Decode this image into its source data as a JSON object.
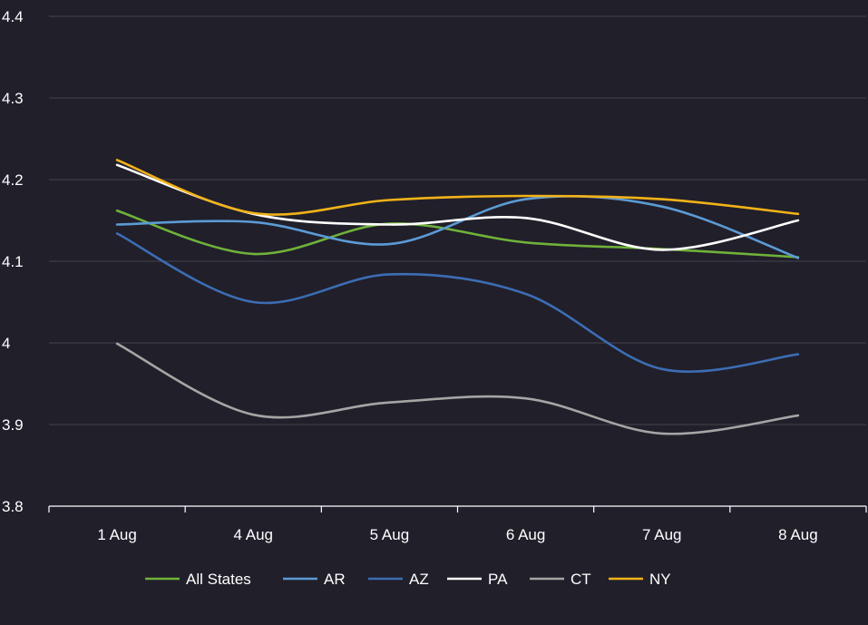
{
  "chart_data": {
    "type": "line",
    "categories": [
      "1 Aug",
      "4 Aug",
      "5 Aug",
      "6 Aug",
      "7 Aug",
      "8 Aug"
    ],
    "ylim": [
      3.8,
      4.4
    ],
    "yticks": [
      3.8,
      3.9,
      4,
      4.1,
      4.2,
      4.3,
      4.4
    ],
    "ytick_labels": [
      "3.8",
      "3.9",
      "4",
      "4.1",
      "4.2",
      "4.3",
      "4.4"
    ],
    "grid": true,
    "legend_position": "bottom",
    "series": [
      {
        "name": "All States",
        "color": "#6fb23a",
        "values": [
          4.162,
          4.109,
          4.146,
          4.123,
          4.115,
          4.105
        ]
      },
      {
        "name": "AR",
        "color": "#5b9bd5",
        "values": [
          4.145,
          4.148,
          4.121,
          4.176,
          4.167,
          4.104
        ]
      },
      {
        "name": "AZ",
        "color": "#3c6db4",
        "values": [
          4.134,
          4.05,
          4.084,
          4.06,
          3.968,
          3.986
        ]
      },
      {
        "name": "PA",
        "color": "#ffffff",
        "values": [
          4.218,
          4.158,
          4.145,
          4.153,
          4.114,
          4.15
        ]
      },
      {
        "name": "CT",
        "color": "#a5a5a5",
        "values": [
          3.999,
          3.912,
          3.927,
          3.932,
          3.889,
          3.911
        ]
      },
      {
        "name": "NY",
        "color": "#f2b318",
        "values": [
          4.224,
          4.159,
          4.175,
          4.18,
          4.176,
          4.158
        ]
      }
    ]
  }
}
